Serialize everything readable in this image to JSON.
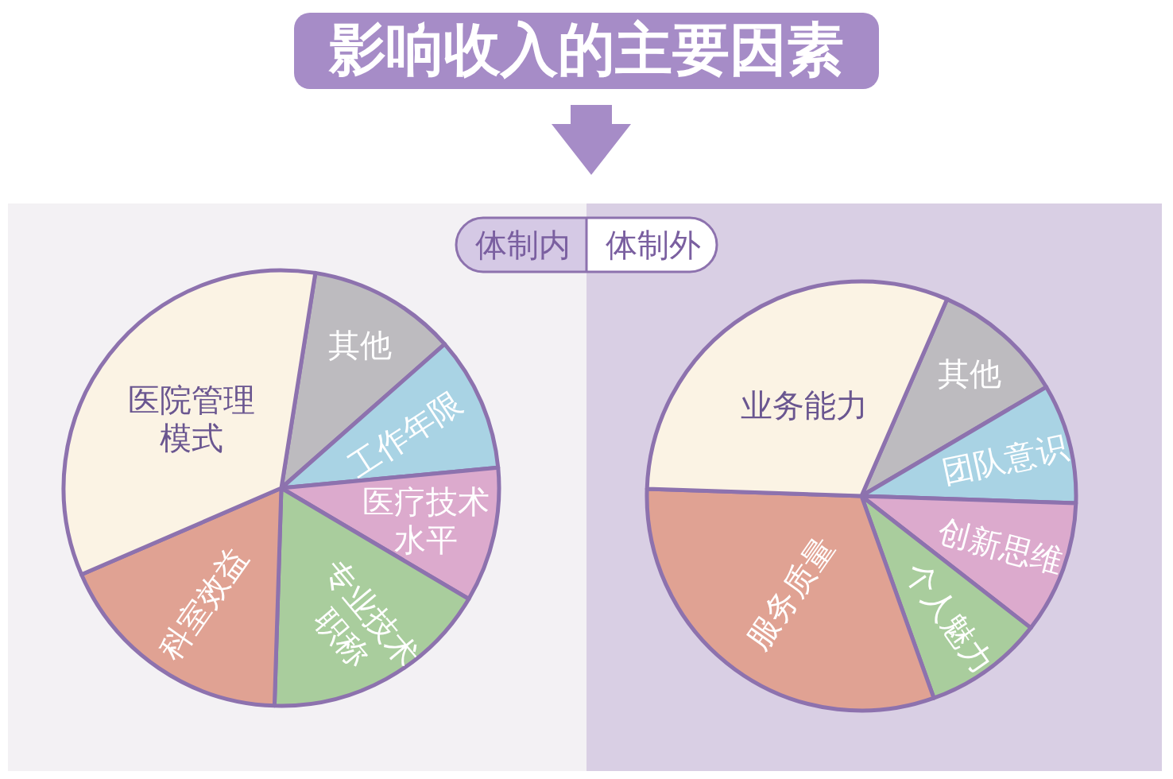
{
  "chart_data": [
    {
      "type": "other",
      "title": "影响收入的主要因素"
    },
    {
      "type": "pie",
      "title": "体制内",
      "categories": [
        "其他",
        "工作年限",
        "医疗技术水平",
        "专业技术职称",
        "科室效益",
        "医院管理模式"
      ],
      "values": [
        11,
        10,
        10,
        17,
        18,
        34
      ],
      "colors": [
        "#bdbbbf",
        "#a9d3e4",
        "#dcaacd",
        "#a9cd9d",
        "#e0a293",
        "#fbf3e4"
      ]
    },
    {
      "type": "pie",
      "title": "体制外",
      "categories": [
        "其他",
        "团队意识",
        "创新思维",
        "个人魅力",
        "服务质量",
        "业务能力"
      ],
      "values": [
        10,
        9,
        10,
        9,
        31,
        31
      ],
      "colors": [
        "#bdbbbf",
        "#a9d3e4",
        "#dcaacd",
        "#a9cd9d",
        "#e0a293",
        "#fbf3e4"
      ]
    }
  ]
}
